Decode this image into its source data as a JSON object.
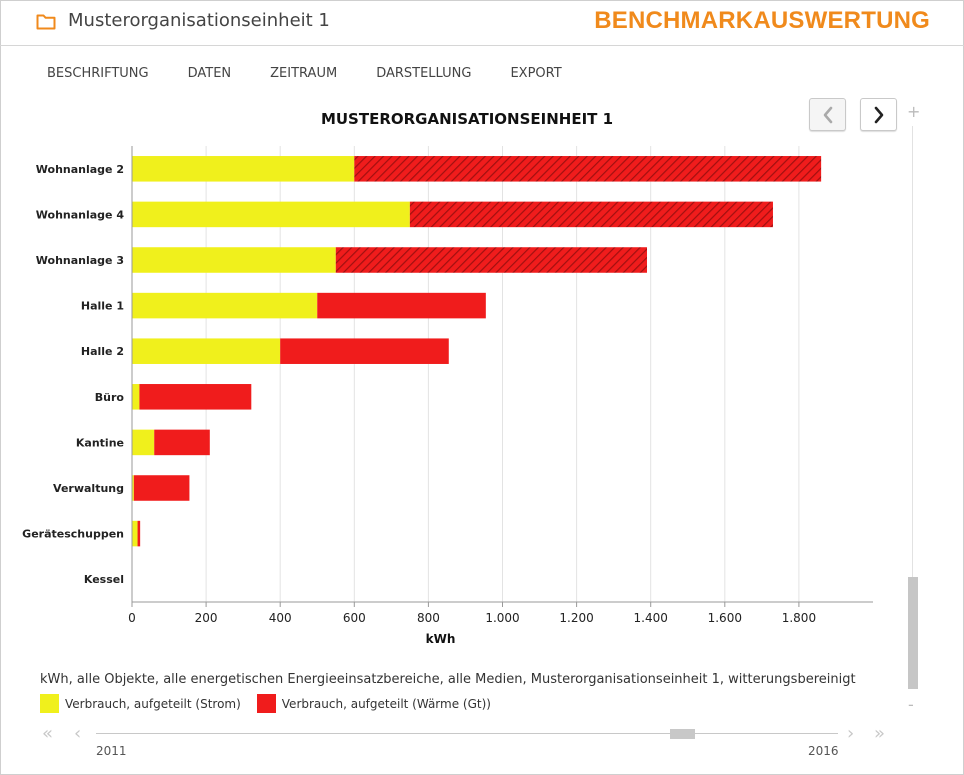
{
  "header": {
    "title": "Musterorganisationseinheit 1",
    "brand": "BENCHMARKAUSWERTUNG",
    "icon": "folder-icon",
    "brand_color": "#f08a1c"
  },
  "menu": {
    "items": [
      "BESCHRIFTUNG",
      "DATEN",
      "ZEITRAUM",
      "DARSTELLUNG",
      "EXPORT"
    ]
  },
  "navigation": {
    "prev_icon": "chevron-left-icon",
    "next_icon": "chevron-right-icon"
  },
  "chart_data": {
    "type": "bar",
    "orientation": "horizontal",
    "stacked": true,
    "title": "MUSTERORGANISATIONSEINHEIT 1",
    "xlabel": "kWh",
    "xlim": [
      0,
      2000
    ],
    "xticks": [
      0,
      200,
      400,
      600,
      800,
      1000,
      1200,
      1400,
      1600,
      1800
    ],
    "xtick_labels": [
      "0",
      "200",
      "400",
      "600",
      "800",
      "1.000",
      "1.200",
      "1.400",
      "1.600",
      "1.800"
    ],
    "grid": true,
    "categories": [
      "Wohnanlage 2",
      "Wohnanlage 4",
      "Wohnanlage 3",
      "Halle 1",
      "Halle 2",
      "Büro",
      "Kantine",
      "Verwaltung",
      "Geräteschuppen",
      "Kessel"
    ],
    "series": [
      {
        "name": "Verbrauch, aufgeteilt (Strom)",
        "color": "#f0f01c",
        "values": [
          600,
          750,
          550,
          500,
          400,
          20,
          60,
          5,
          15,
          0
        ]
      },
      {
        "name": "Verbrauch, aufgeteilt (Wärme (Gt))",
        "color": "#f01c1c",
        "values": [
          1260,
          980,
          840,
          455,
          455,
          302,
          150,
          150,
          7,
          0
        ],
        "hatched": [
          true,
          true,
          true,
          false,
          false,
          false,
          false,
          false,
          false,
          false
        ]
      }
    ]
  },
  "legend": {
    "description": "kWh, alle Objekte, alle energetischen Energieeinsatzbereiche, alle Medien, Musterorganisationseinheit 1, witterungsbereinigt",
    "placement": "bottom"
  },
  "scrollbar": {
    "plus": "+",
    "minus": "-"
  },
  "timeline": {
    "start_year": "2011",
    "end_year": "2016",
    "icons": [
      "double-chevron-left-icon",
      "chevron-left-icon",
      "chevron-right-icon",
      "double-chevron-right-icon"
    ]
  }
}
